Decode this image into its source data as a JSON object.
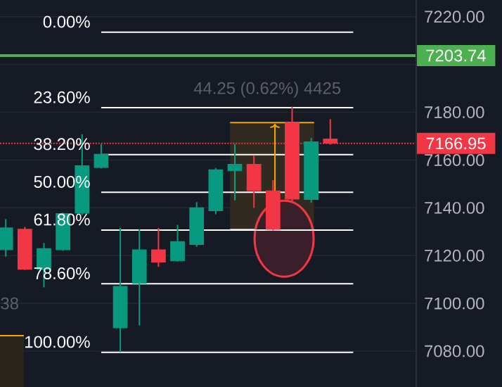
{
  "chart_data": {
    "type": "candlestick",
    "categories": [
      null,
      null,
      null,
      null,
      null,
      null,
      null,
      null,
      null,
      null,
      null,
      null,
      null,
      null,
      null,
      null,
      null,
      null
    ],
    "ohlc": [
      [
        7122.5,
        7135.3,
        7119.6,
        7131.6
      ],
      [
        7131.0,
        7132.0,
        7114.0,
        7114.3
      ],
      [
        7114.3,
        7125.3,
        7106.7,
        7122.9
      ],
      [
        7122.5,
        7138.0,
        7122.0,
        7137.6
      ],
      [
        7137.8,
        7170.8,
        7137.0,
        7157.6
      ],
      [
        7156.9,
        7166.7,
        7156.5,
        7162.4
      ],
      [
        7089.8,
        7131.6,
        7079.6,
        7107.1
      ],
      [
        7108.4,
        7131.0,
        7090.8,
        7122.4
      ],
      [
        7122.4,
        7131.6,
        7115.3,
        7117.3
      ],
      [
        7117.8,
        7132.9,
        7117.5,
        7125.9
      ],
      [
        7124.7,
        7142.4,
        7123.7,
        7140.0
      ],
      [
        7138.8,
        7156.7,
        7137.3,
        7155.9
      ],
      [
        7155.5,
        7166.7,
        7143.1,
        7158.2
      ],
      [
        7158.2,
        7161.8,
        7140.0,
        7147.2
      ],
      [
        7147.1,
        7151.6,
        7130.5,
        7131.0
      ],
      [
        7175.7,
        7182.4,
        7142.2,
        7143.7
      ],
      [
        7143.5,
        7169.2,
        7142.2,
        7167.6
      ],
      [
        7168.8,
        7177.1,
        7166.5,
        7167.1
      ]
    ],
    "colors": [
      "#089981",
      "#f23645",
      "#089981",
      "#089981",
      "#089981",
      "#089981",
      "#089981",
      "#089981",
      "#f23645",
      "#089981",
      "#089981",
      "#089981",
      "#089981",
      "#f23645",
      "#f23645",
      "#f23645",
      "#089981",
      "#f23645"
    ],
    "ylim": [
      7065,
      7227
    ],
    "yticks": [
      {
        "value": 7080,
        "label": "7080.00"
      },
      {
        "value": 7100,
        "label": "7100.00"
      },
      {
        "value": 7120,
        "label": "7120.00"
      },
      {
        "value": 7140,
        "label": "7140.00"
      },
      {
        "value": 7160,
        "label": "7160.00"
      },
      {
        "value": 7180,
        "label": "7180.00"
      },
      {
        "value": 7200,
        "label": null
      },
      {
        "value": 7220,
        "label": "7220.00"
      }
    ],
    "tick_labels": "y",
    "grid": "y",
    "ref_lines": [
      {
        "axis": "y",
        "value": 7203.74,
        "label": "7203.74",
        "color": "#4caf50",
        "line_style": "solid"
      },
      {
        "axis": "y",
        "value": 7166.95,
        "label": "7166.95",
        "color": "#f23645",
        "line_style": "dotted"
      },
      {
        "axis": "y",
        "value": 7213.5,
        "color": "#ffffff"
      },
      {
        "axis": "y",
        "value": 7181.9,
        "color": "#ffffff"
      },
      {
        "axis": "y",
        "value": 7162.3,
        "color": "#ffffff"
      },
      {
        "axis": "y",
        "value": 7146.5,
        "color": "#ffffff"
      },
      {
        "axis": "y",
        "value": 7130.7,
        "color": "#ffffff"
      },
      {
        "axis": "y",
        "value": 7108.2,
        "color": "#ffffff"
      },
      {
        "axis": "y",
        "value": 7079.5,
        "color": "#ffffff"
      }
    ],
    "annotations": [
      "44.25 (0.62%) 4425",
      "38",
      "0.00%",
      "23.60%",
      "38.20%",
      "50.00%",
      "61.80%",
      "78.60%",
      "100.00%"
    ]
  }
}
